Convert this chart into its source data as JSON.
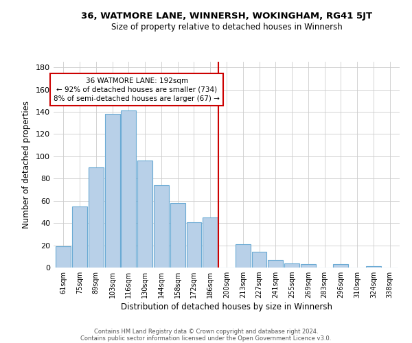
{
  "title": "36, WATMORE LANE, WINNERSH, WOKINGHAM, RG41 5JT",
  "subtitle": "Size of property relative to detached houses in Winnersh",
  "xlabel": "Distribution of detached houses by size in Winnersh",
  "ylabel": "Number of detached properties",
  "footer1": "Contains HM Land Registry data © Crown copyright and database right 2024.",
  "footer2": "Contains public sector information licensed under the Open Government Licence v3.0.",
  "categories": [
    "61sqm",
    "75sqm",
    "89sqm",
    "103sqm",
    "116sqm",
    "130sqm",
    "144sqm",
    "158sqm",
    "172sqm",
    "186sqm",
    "200sqm",
    "213sqm",
    "227sqm",
    "241sqm",
    "255sqm",
    "269sqm",
    "283sqm",
    "296sqm",
    "310sqm",
    "324sqm",
    "338sqm"
  ],
  "values": [
    19,
    55,
    90,
    138,
    141,
    96,
    74,
    58,
    41,
    45,
    0,
    21,
    14,
    7,
    4,
    3,
    0,
    3,
    0,
    1,
    0
  ],
  "bar_color": "#b8d0e8",
  "bar_edge_color": "#6aaad4",
  "vline_x": 9.5,
  "vline_color": "#cc0000",
  "ann_line1": "36 WATMORE LANE: 192sqm",
  "ann_line2": "← 92% of detached houses are smaller (734)",
  "ann_line3": "8% of semi-detached houses are larger (67) →",
  "ylim": [
    0,
    185
  ],
  "yticks": [
    0,
    20,
    40,
    60,
    80,
    100,
    120,
    140,
    160,
    180
  ],
  "bg_color": "#ffffff",
  "grid_color": "#cccccc"
}
